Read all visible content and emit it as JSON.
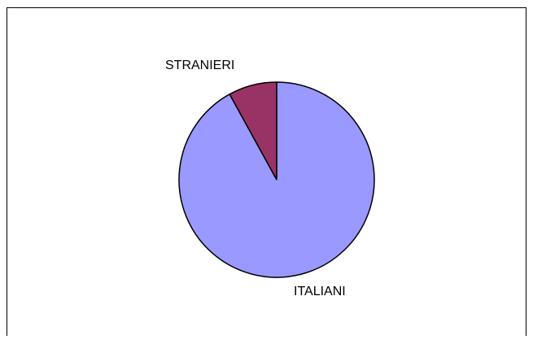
{
  "chart_data": {
    "type": "pie",
    "title": "",
    "categories": [
      "ITALIANI",
      "STRANIERI"
    ],
    "values": [
      92,
      8
    ],
    "colors": [
      "#9999ff",
      "#993366"
    ],
    "start_angle_deg": 0,
    "direction": "clockwise",
    "labels": {
      "stranieri": "STRANIERI",
      "italiani": "ITALIANI"
    },
    "legend": "none"
  }
}
